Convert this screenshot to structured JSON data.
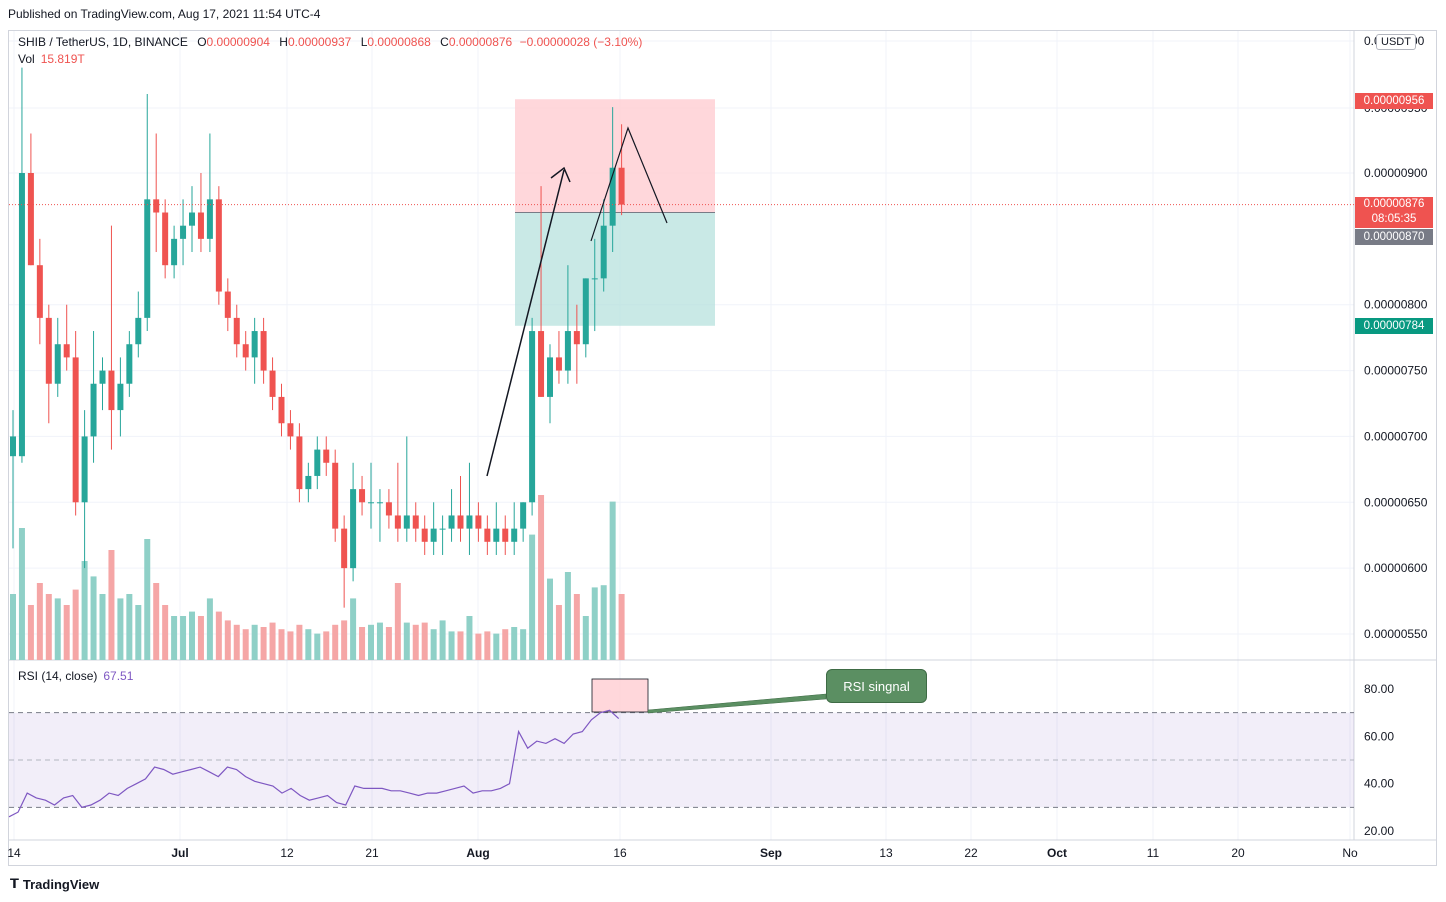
{
  "header": {
    "published": "Published on TradingView.com, Aug 17, 2021 11:54 UTC-4"
  },
  "legend": {
    "symbol": "SHIB / TetherUS, 1D, BINANCE",
    "o_label": "O",
    "o_value": "0.00000904",
    "h_label": "H",
    "h_value": "0.00000937",
    "l_label": "L",
    "l_value": "0.00000868",
    "c_label": "C",
    "c_value": "0.00000876",
    "change": "−0.00000028 (−3.10%)",
    "vol_label": "Vol",
    "vol_value": "15.819T",
    "rsi_label": "RSI (14, close)",
    "rsi_value": "67.51"
  },
  "price_axis": {
    "currency_button": "USDT",
    "ticks": [
      "0.00000900",
      "0.00000800",
      "0.00000750",
      "0.00000700",
      "0.00000650",
      "0.00000600",
      "0.00000550"
    ],
    "top_partial": "0.0",
    "top_partial_right": "00",
    "partial_956_under": "0.00000950"
  },
  "price_tags": {
    "stop": "0.00000956",
    "last": "0.00000876",
    "countdown": "08:05:35",
    "entry": "0.00000870",
    "target": "0.00000784"
  },
  "rsi_axis": {
    "ticks": [
      "80.00",
      "60.00",
      "40.00",
      "20.00"
    ]
  },
  "time_axis": {
    "labels": [
      "14",
      "Jul",
      "12",
      "21",
      "Aug",
      "16",
      "Sep",
      "13",
      "22",
      "Oct",
      "11",
      "20",
      "No"
    ]
  },
  "annotations": {
    "rsi_signal": "RSI singnal"
  },
  "footer": {
    "brand": "TradingView"
  },
  "colors": {
    "up": "#26a69a",
    "down": "#ef5350",
    "rsi": "#7e57c2",
    "profit_zone": "#b2dfdb",
    "loss_zone": "#ffcdd2"
  },
  "chart_data": {
    "type": "candlestick",
    "symbol": "SHIB / TetherUS",
    "interval": "1D",
    "ylim": [
      5.2e-06,
      1e-05
    ],
    "position": {
      "stop": 9.56e-06,
      "entry": 8.7e-06,
      "target": 7.84e-06
    },
    "candles": [
      {
        "o": 6.85e-06,
        "h": 7.2e-06,
        "l": 6.15e-06,
        "c": 7e-06,
        "v": 0.3
      },
      {
        "o": 6.85e-06,
        "h": 9.8e-06,
        "l": 6.8e-06,
        "c": 9e-06,
        "v": 0.6
      },
      {
        "o": 9e-06,
        "h": 9.3e-06,
        "l": 8.3e-06,
        "c": 8.3e-06,
        "v": 0.25
      },
      {
        "o": 8.3e-06,
        "h": 8.5e-06,
        "l": 7.7e-06,
        "c": 7.9e-06,
        "v": 0.35
      },
      {
        "o": 7.9e-06,
        "h": 8e-06,
        "l": 7.1e-06,
        "c": 7.4e-06,
        "v": 0.3
      },
      {
        "o": 7.4e-06,
        "h": 7.9e-06,
        "l": 7.3e-06,
        "c": 7.7e-06,
        "v": 0.28
      },
      {
        "o": 7.7e-06,
        "h": 8e-06,
        "l": 7.5e-06,
        "c": 7.6e-06,
        "v": 0.25
      },
      {
        "o": 7.6e-06,
        "h": 7.8e-06,
        "l": 6.4e-06,
        "c": 6.5e-06,
        "v": 0.32
      },
      {
        "o": 6.5e-06,
        "h": 7.2e-06,
        "l": 6e-06,
        "c": 7e-06,
        "v": 0.45
      },
      {
        "o": 7e-06,
        "h": 7.8e-06,
        "l": 6.8e-06,
        "c": 7.4e-06,
        "v": 0.38
      },
      {
        "o": 7.4e-06,
        "h": 7.6e-06,
        "l": 7.2e-06,
        "c": 7.5e-06,
        "v": 0.3
      },
      {
        "o": 7.5e-06,
        "h": 8.6e-06,
        "l": 6.9e-06,
        "c": 7.2e-06,
        "v": 0.5
      },
      {
        "o": 7.2e-06,
        "h": 7.6e-06,
        "l": 7e-06,
        "c": 7.4e-06,
        "v": 0.28
      },
      {
        "o": 7.4e-06,
        "h": 7.8e-06,
        "l": 7.3e-06,
        "c": 7.7e-06,
        "v": 0.3
      },
      {
        "o": 7.7e-06,
        "h": 8.1e-06,
        "l": 7.6e-06,
        "c": 7.9e-06,
        "v": 0.25
      },
      {
        "o": 7.9e-06,
        "h": 9.6e-06,
        "l": 7.8e-06,
        "c": 8.8e-06,
        "v": 0.55
      },
      {
        "o": 8.8e-06,
        "h": 9.3e-06,
        "l": 8.4e-06,
        "c": 8.7e-06,
        "v": 0.35
      },
      {
        "o": 8.7e-06,
        "h": 8.8e-06,
        "l": 8.2e-06,
        "c": 8.3e-06,
        "v": 0.25
      },
      {
        "o": 8.3e-06,
        "h": 8.6e-06,
        "l": 8.2e-06,
        "c": 8.5e-06,
        "v": 0.2
      },
      {
        "o": 8.5e-06,
        "h": 8.8e-06,
        "l": 8.3e-06,
        "c": 8.6e-06,
        "v": 0.2
      },
      {
        "o": 8.6e-06,
        "h": 8.9e-06,
        "l": 8.4e-06,
        "c": 8.7e-06,
        "v": 0.22
      },
      {
        "o": 8.7e-06,
        "h": 9e-06,
        "l": 8.4e-06,
        "c": 8.5e-06,
        "v": 0.2
      },
      {
        "o": 8.5e-06,
        "h": 9.3e-06,
        "l": 8.4e-06,
        "c": 8.8e-06,
        "v": 0.28
      },
      {
        "o": 8.8e-06,
        "h": 8.9e-06,
        "l": 8e-06,
        "c": 8.1e-06,
        "v": 0.22
      },
      {
        "o": 8.1e-06,
        "h": 8.2e-06,
        "l": 7.8e-06,
        "c": 7.9e-06,
        "v": 0.18
      },
      {
        "o": 7.9e-06,
        "h": 8e-06,
        "l": 7.6e-06,
        "c": 7.7e-06,
        "v": 0.16
      },
      {
        "o": 7.7e-06,
        "h": 7.8e-06,
        "l": 7.5e-06,
        "c": 7.6e-06,
        "v": 0.14
      },
      {
        "o": 7.6e-06,
        "h": 7.9e-06,
        "l": 7.4e-06,
        "c": 7.8e-06,
        "v": 0.16
      },
      {
        "o": 7.8e-06,
        "h": 7.9e-06,
        "l": 7.4e-06,
        "c": 7.5e-06,
        "v": 0.15
      },
      {
        "o": 7.5e-06,
        "h": 7.6e-06,
        "l": 7.2e-06,
        "c": 7.3e-06,
        "v": 0.17
      },
      {
        "o": 7.3e-06,
        "h": 7.4e-06,
        "l": 7e-06,
        "c": 7.1e-06,
        "v": 0.14
      },
      {
        "o": 7.1e-06,
        "h": 7.2e-06,
        "l": 6.9e-06,
        "c": 7e-06,
        "v": 0.13
      },
      {
        "o": 7e-06,
        "h": 7.1e-06,
        "l": 6.5e-06,
        "c": 6.6e-06,
        "v": 0.16
      },
      {
        "o": 6.6e-06,
        "h": 6.8e-06,
        "l": 6.5e-06,
        "c": 6.7e-06,
        "v": 0.14
      },
      {
        "o": 6.7e-06,
        "h": 7e-06,
        "l": 6.6e-06,
        "c": 6.9e-06,
        "v": 0.12
      },
      {
        "o": 6.9e-06,
        "h": 7e-06,
        "l": 6.7e-06,
        "c": 6.8e-06,
        "v": 0.13
      },
      {
        "o": 6.8e-06,
        "h": 6.9e-06,
        "l": 6.2e-06,
        "c": 6.3e-06,
        "v": 0.16
      },
      {
        "o": 6.3e-06,
        "h": 6.4e-06,
        "l": 5.7e-06,
        "c": 6e-06,
        "v": 0.18
      },
      {
        "o": 6e-06,
        "h": 6.8e-06,
        "l": 5.9e-06,
        "c": 6.6e-06,
        "v": 0.28
      },
      {
        "o": 6.6e-06,
        "h": 6.7e-06,
        "l": 6.4e-06,
        "c": 6.5e-06,
        "v": 0.15
      },
      {
        "o": 6.5e-06,
        "h": 6.8e-06,
        "l": 6.3e-06,
        "c": 6.5e-06,
        "v": 0.16
      },
      {
        "o": 6.5e-06,
        "h": 6.6e-06,
        "l": 6.2e-06,
        "c": 6.5e-06,
        "v": 0.17
      },
      {
        "o": 6.5e-06,
        "h": 6.6e-06,
        "l": 6.3e-06,
        "c": 6.4e-06,
        "v": 0.15
      },
      {
        "o": 6.4e-06,
        "h": 6.8e-06,
        "l": 6.2e-06,
        "c": 6.3e-06,
        "v": 0.35
      },
      {
        "o": 6.3e-06,
        "h": 7e-06,
        "l": 6.2e-06,
        "c": 6.4e-06,
        "v": 0.17
      },
      {
        "o": 6.4e-06,
        "h": 6.5e-06,
        "l": 6.2e-06,
        "c": 6.3e-06,
        "v": 0.16
      },
      {
        "o": 6.3e-06,
        "h": 6.4e-06,
        "l": 6.1e-06,
        "c": 6.2e-06,
        "v": 0.17
      },
      {
        "o": 6.2e-06,
        "h": 6.5e-06,
        "l": 6.1e-06,
        "c": 6.3e-06,
        "v": 0.14
      },
      {
        "o": 6.3e-06,
        "h": 6.4e-06,
        "l": 6.1e-06,
        "c": 6.3e-06,
        "v": 0.18
      },
      {
        "o": 6.3e-06,
        "h": 6.6e-06,
        "l": 6.2e-06,
        "c": 6.4e-06,
        "v": 0.13
      },
      {
        "o": 6.4e-06,
        "h": 6.7e-06,
        "l": 6.2e-06,
        "c": 6.3e-06,
        "v": 0.13
      },
      {
        "o": 6.3e-06,
        "h": 6.8e-06,
        "l": 6.1e-06,
        "c": 6.4e-06,
        "v": 0.2
      },
      {
        "o": 6.4e-06,
        "h": 6.5e-06,
        "l": 6.2e-06,
        "c": 6.3e-06,
        "v": 0.12
      },
      {
        "o": 6.3e-06,
        "h": 6.4e-06,
        "l": 6.1e-06,
        "c": 6.2e-06,
        "v": 0.13
      },
      {
        "o": 6.2e-06,
        "h": 6.5e-06,
        "l": 6.1e-06,
        "c": 6.3e-06,
        "v": 0.12
      },
      {
        "o": 6.3e-06,
        "h": 6.4e-06,
        "l": 6.1e-06,
        "c": 6.2e-06,
        "v": 0.14
      },
      {
        "o": 6.2e-06,
        "h": 6.5e-06,
        "l": 6.1e-06,
        "c": 6.3e-06,
        "v": 0.15
      },
      {
        "o": 6.3e-06,
        "h": 6.5e-06,
        "l": 6.2e-06,
        "c": 6.5e-06,
        "v": 0.14
      },
      {
        "o": 6.5e-06,
        "h": 7.9e-06,
        "l": 6.4e-06,
        "c": 7.8e-06,
        "v": 0.57
      },
      {
        "o": 7.8e-06,
        "h": 8.9e-06,
        "l": 7.3e-06,
        "c": 7.3e-06,
        "v": 0.75
      },
      {
        "o": 7.3e-06,
        "h": 7.7e-06,
        "l": 7.1e-06,
        "c": 7.6e-06,
        "v": 0.37
      },
      {
        "o": 7.6e-06,
        "h": 7.8e-06,
        "l": 7.4e-06,
        "c": 7.5e-06,
        "v": 0.25
      },
      {
        "o": 7.5e-06,
        "h": 8.3e-06,
        "l": 7.4e-06,
        "c": 7.8e-06,
        "v": 0.4
      },
      {
        "o": 7.8e-06,
        "h": 8e-06,
        "l": 7.4e-06,
        "c": 7.7e-06,
        "v": 0.3
      },
      {
        "o": 7.7e-06,
        "h": 8.2e-06,
        "l": 7.6e-06,
        "c": 8.2e-06,
        "v": 0.2
      },
      {
        "o": 8.2e-06,
        "h": 8.5e-06,
        "l": 7.8e-06,
        "c": 8.2e-06,
        "v": 0.33
      },
      {
        "o": 8.2e-06,
        "h": 8.8e-06,
        "l": 8.1e-06,
        "c": 8.6e-06,
        "v": 0.34
      },
      {
        "o": 8.6e-06,
        "h": 9.5e-06,
        "l": 8.4e-06,
        "c": 9.04e-06,
        "v": 0.72
      },
      {
        "o": 9.04e-06,
        "h": 9.37e-06,
        "l": 8.68e-06,
        "c": 8.76e-06,
        "v": 0.3
      }
    ],
    "rsi": [
      26,
      28,
      36,
      34,
      33,
      31,
      34,
      35,
      30,
      31,
      33,
      36,
      35,
      38,
      40,
      42,
      47,
      46,
      44,
      45,
      46,
      47,
      45,
      43,
      47,
      46,
      43,
      41,
      40,
      39,
      36,
      38,
      35,
      33,
      34,
      35,
      32,
      31,
      39,
      38,
      38,
      38,
      37,
      37,
      36,
      35,
      36,
      36,
      37,
      38,
      39,
      36,
      37,
      37,
      38,
      40,
      62,
      55,
      58,
      57,
      59,
      57,
      61,
      62,
      67,
      70,
      71,
      67.51
    ]
  }
}
